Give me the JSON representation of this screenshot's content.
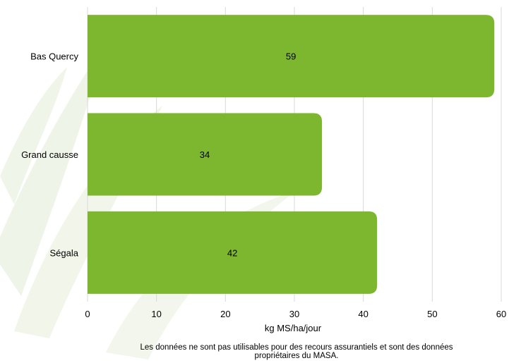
{
  "chart_data": {
    "type": "bar",
    "orientation": "horizontal",
    "categories": [
      "Bas Quercy",
      "Grand causse",
      "Ségala"
    ],
    "values": [
      59,
      34,
      42
    ],
    "data_labels": [
      "59",
      "34",
      "42"
    ],
    "title": "",
    "xlabel": "kg MS/ha/jour",
    "ylabel": "",
    "xlim": [
      0,
      60
    ],
    "x_ticks": [
      "0",
      "10",
      "20",
      "30",
      "40",
      "50",
      "60"
    ],
    "grid": "vertical",
    "legend": "none",
    "background": "faint green grass leaves watermark",
    "colors": {
      "bar": "#7DB72F",
      "grid": "#D9D9D9",
      "text": "#000000",
      "watermark": "#EEF3E6"
    }
  },
  "footnote": {
    "line1": "Les données ne sont pas utilisables pour des recours assurantiels et sont des données",
    "line2": "propriétaires du MASA."
  }
}
